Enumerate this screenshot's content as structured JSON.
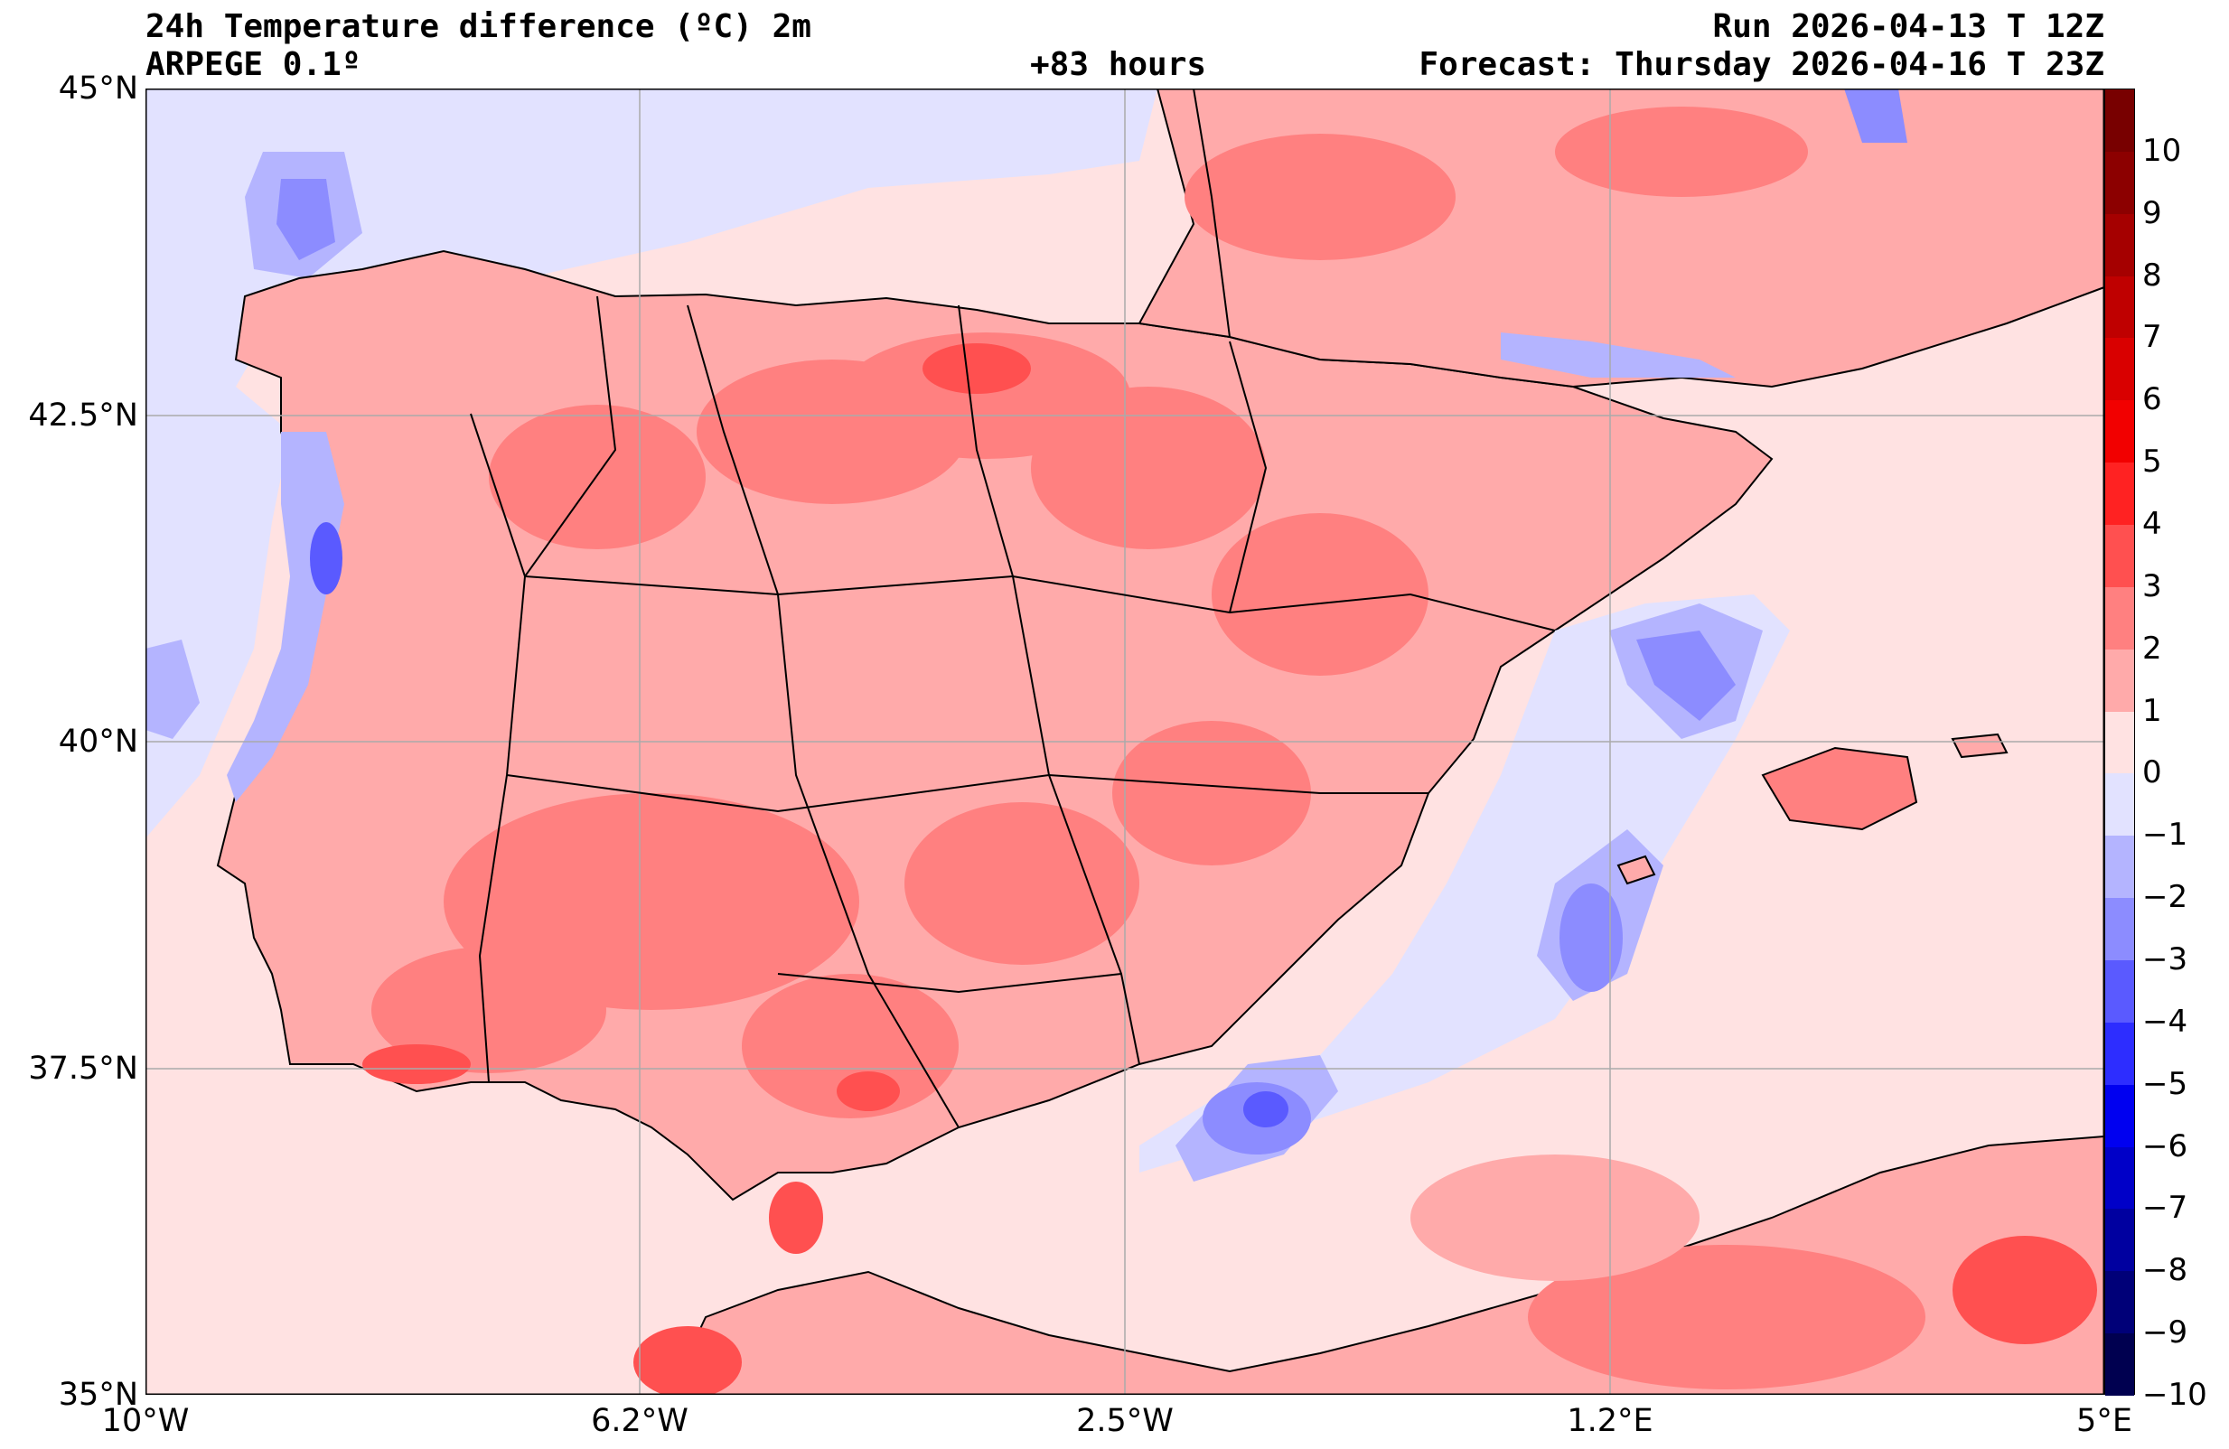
{
  "header": {
    "title": "24h Temperature difference (ºC) 2m",
    "model": "ARPEGE 0.1º",
    "lead_time": "+83 hours",
    "run": "Run 2026-04-13 T 12Z",
    "forecast": "Forecast: Thursday 2026-04-16 T 23Z"
  },
  "axes": {
    "lat_labels": [
      "45°N",
      "42.5°N",
      "40°N",
      "37.5°N",
      "35°N"
    ],
    "lon_labels": [
      "10°W",
      "6.2°W",
      "2.5°W",
      "1.2°E",
      "5°E"
    ]
  },
  "colorbar": {
    "labels": [
      "10",
      "9",
      "8",
      "7",
      "6",
      "5",
      "4",
      "3",
      "2",
      "1",
      "0",
      "−1",
      "−2",
      "−3",
      "−4",
      "−5",
      "−6",
      "−7",
      "−8",
      "−9",
      "−10"
    ],
    "colors": [
      "#780000",
      "#8c0000",
      "#a50000",
      "#bf0000",
      "#d90000",
      "#f20000",
      "#ff2222",
      "#ff5050",
      "#ff8080",
      "#ffaaaa",
      "#ffe2e2",
      "#e2e2ff",
      "#b4b4ff",
      "#8c8cff",
      "#5a5aff",
      "#2d2dff",
      "#0000f0",
      "#0000c8",
      "#0000a0",
      "#000078",
      "#000050"
    ]
  },
  "palette": {
    "land_base": "#ffaaaa",
    "warm_2": "#ff8080",
    "warm_3": "#ff5050",
    "warm_4": "#ff2222",
    "sea_base": "#ffe2e2",
    "cool_1": "#e2e2ff",
    "cool_2": "#b4b4ff",
    "cool_3": "#8c8cff",
    "cool_4": "#5a5aff"
  }
}
